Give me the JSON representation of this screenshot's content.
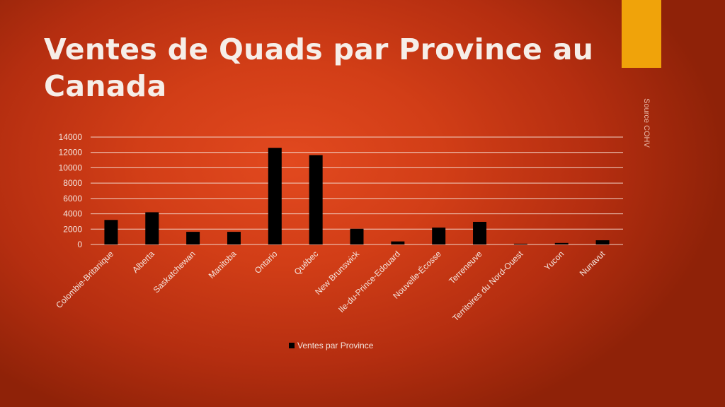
{
  "slide": {
    "title": "Ventes de Quads par Province au Canada",
    "source": "Source COHV",
    "accent_color": "#f0a30a"
  },
  "chart_data": {
    "type": "bar",
    "categories": [
      "Colombie-Britanique",
      "Alberta",
      "Saskatchewan",
      "Manitoba",
      "Ontario",
      "Québec",
      "New Brunswick",
      "Ile-du-Prince-Edouard",
      "Nouvelle-Écosse",
      "Terreneuve",
      "Territoires du Nord-Ouest",
      "Yucon",
      "Nunavut"
    ],
    "series": [
      {
        "name": "Ventes par Province",
        "values": [
          3200,
          4200,
          1650,
          1650,
          12600,
          11650,
          2050,
          400,
          2200,
          2950,
          100,
          200,
          550
        ],
        "color": "#000000"
      }
    ],
    "ylim": [
      0,
      14000
    ],
    "yticks": [
      0,
      2000,
      4000,
      6000,
      8000,
      10000,
      12000,
      14000
    ],
    "grid": true,
    "legend": "bottom"
  }
}
